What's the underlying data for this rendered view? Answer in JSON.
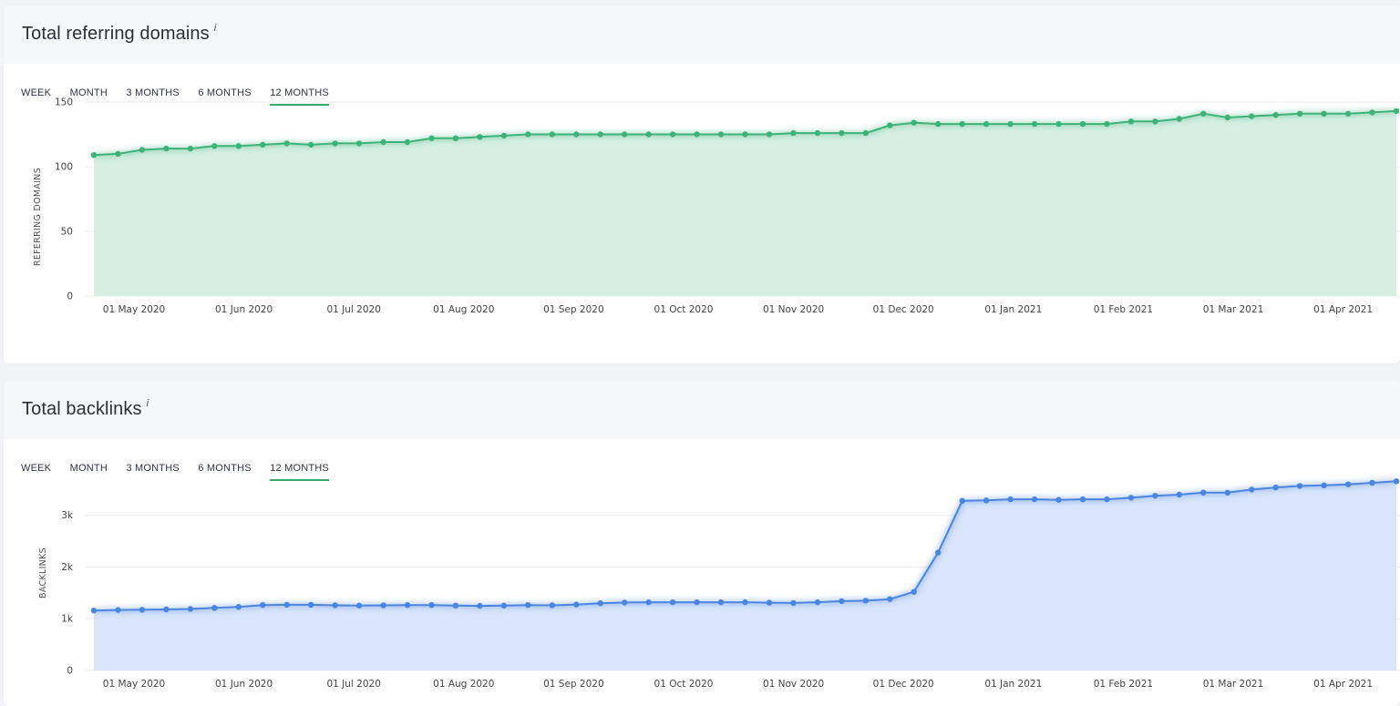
{
  "panels": [
    {
      "title": "Total referring domains",
      "info_icon": "i",
      "tabs": [
        "WEEK",
        "MONTH",
        "3 MONTHS",
        "6 MONTHS",
        "12 MONTHS"
      ],
      "active_tab": 4
    },
    {
      "title": "Total backlinks",
      "info_icon": "i",
      "tabs": [
        "WEEK",
        "MONTH",
        "3 MONTHS",
        "6 MONTHS",
        "12 MONTHS"
      ],
      "active_tab": 4
    }
  ],
  "chart_data": [
    {
      "type": "area",
      "ylabel": "REFERRING DOMAINS",
      "ylim": [
        0,
        150
      ],
      "yticks": [
        0,
        50,
        100,
        150
      ],
      "ytick_labels": [
        "0",
        "50",
        "100",
        "150"
      ],
      "x_tick_labels": [
        "01 May 2020",
        "01 Jun 2020",
        "01 Jul 2020",
        "01 Aug 2020",
        "01 Sep 2020",
        "01 Oct 2020",
        "01 Nov 2020",
        "01 Dec 2020",
        "01 Jan 2021",
        "01 Feb 2021",
        "01 Mar 2021",
        "01 Apr 2021"
      ],
      "color": "#3db37a",
      "fill": "#d6efe2",
      "grid": true,
      "values": [
        109,
        110,
        113,
        114,
        114,
        116,
        116,
        117,
        118,
        117,
        118,
        118,
        119,
        119,
        122,
        122,
        123,
        124,
        125,
        125,
        125,
        125,
        125,
        125,
        125,
        125,
        125,
        125,
        125,
        126,
        126,
        126,
        126,
        132,
        134,
        133,
        133,
        133,
        133,
        133,
        133,
        133,
        133,
        135,
        135,
        137,
        141,
        138,
        139,
        140,
        141,
        141,
        141,
        142,
        143
      ]
    },
    {
      "type": "area",
      "ylabel": "BACKLINKS",
      "ylim": [
        0,
        3700
      ],
      "yticks": [
        0,
        1000,
        2000,
        3000
      ],
      "ytick_labels": [
        "0",
        "1k",
        "2k",
        "3k"
      ],
      "x_tick_labels": [
        "01 May 2020",
        "01 Jun 2020",
        "01 Jul 2020",
        "01 Aug 2020",
        "01 Sep 2020",
        "01 Oct 2020",
        "01 Nov 2020",
        "01 Dec 2020",
        "01 Jan 2021",
        "01 Feb 2021",
        "01 Mar 2021",
        "01 Apr 2021"
      ],
      "color": "#4a86e0",
      "fill": "#d8e5fa",
      "grid": true,
      "values": [
        1160,
        1170,
        1175,
        1180,
        1190,
        1210,
        1230,
        1265,
        1270,
        1270,
        1260,
        1255,
        1260,
        1265,
        1265,
        1255,
        1250,
        1255,
        1265,
        1260,
        1275,
        1300,
        1315,
        1320,
        1320,
        1320,
        1320,
        1320,
        1310,
        1305,
        1320,
        1340,
        1350,
        1380,
        1520,
        2280,
        3280,
        3290,
        3310,
        3310,
        3300,
        3310,
        3310,
        3340,
        3380,
        3400,
        3440,
        3440,
        3500,
        3540,
        3570,
        3580,
        3600,
        3630,
        3660
      ]
    }
  ]
}
